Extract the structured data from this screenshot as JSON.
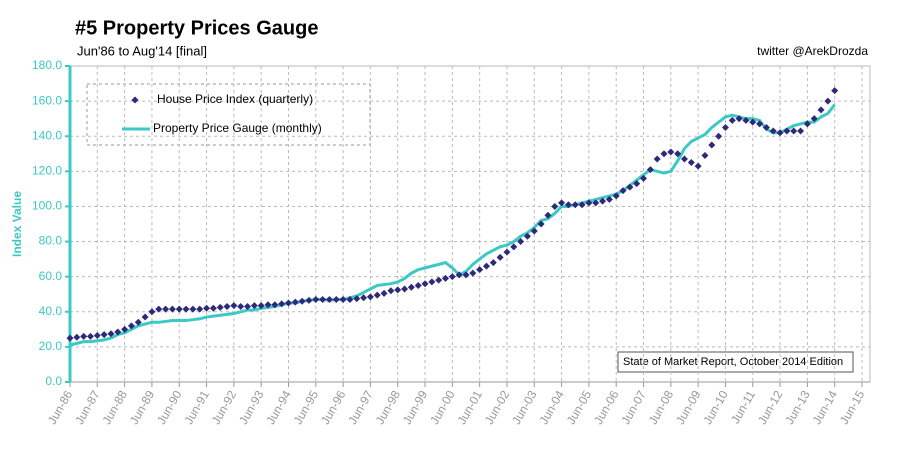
{
  "chart_data": {
    "type": "scatter-line",
    "title": "#5 Property Prices Gauge",
    "subtitle": "Jun'86 to Aug'14 [final]",
    "credit": "twitter @ArekDrozda",
    "ylabel": "Index Value",
    "note": "State of Market Report, October 2014 Edition",
    "x": [
      "Jun-86",
      "Sep-86",
      "Dec-86",
      "Mar-87",
      "Jun-87",
      "Sep-87",
      "Dec-87",
      "Mar-88",
      "Jun-88",
      "Sep-88",
      "Dec-88",
      "Mar-89",
      "Jun-89",
      "Sep-89",
      "Dec-89",
      "Mar-90",
      "Jun-90",
      "Sep-90",
      "Dec-90",
      "Mar-91",
      "Jun-91",
      "Sep-91",
      "Dec-91",
      "Mar-92",
      "Jun-92",
      "Sep-92",
      "Dec-92",
      "Mar-93",
      "Jun-93",
      "Sep-93",
      "Dec-93",
      "Mar-94",
      "Jun-94",
      "Sep-94",
      "Dec-94",
      "Mar-95",
      "Jun-95",
      "Sep-95",
      "Dec-95",
      "Mar-96",
      "Jun-96",
      "Sep-96",
      "Dec-96",
      "Mar-97",
      "Jun-97",
      "Sep-97",
      "Dec-97",
      "Mar-98",
      "Jun-98",
      "Sep-98",
      "Dec-98",
      "Mar-99",
      "Jun-99",
      "Sep-99",
      "Dec-99",
      "Mar-00",
      "Jun-00",
      "Sep-00",
      "Dec-00",
      "Mar-01",
      "Jun-01",
      "Sep-01",
      "Dec-01",
      "Mar-02",
      "Jun-02",
      "Sep-02",
      "Dec-02",
      "Mar-03",
      "Jun-03",
      "Sep-03",
      "Dec-03",
      "Mar-04",
      "Jun-04",
      "Sep-04",
      "Dec-04",
      "Mar-05",
      "Jun-05",
      "Sep-05",
      "Dec-05",
      "Mar-06",
      "Jun-06",
      "Sep-06",
      "Dec-06",
      "Mar-07",
      "Jun-07",
      "Sep-07",
      "Dec-07",
      "Mar-08",
      "Jun-08",
      "Sep-08",
      "Dec-08",
      "Mar-09",
      "Jun-09",
      "Sep-09",
      "Dec-09",
      "Mar-10",
      "Jun-10",
      "Sep-10",
      "Dec-10",
      "Mar-11",
      "Jun-11",
      "Sep-11",
      "Dec-11",
      "Mar-12",
      "Jun-12",
      "Sep-12",
      "Dec-12",
      "Mar-13",
      "Jun-13",
      "Sep-13",
      "Dec-13",
      "Mar-14",
      "Jun-14"
    ],
    "series": [
      {
        "name": "House Price Index (quarterly)",
        "color": "#2e2a7a",
        "style": "marker",
        "values": [
          25,
          25.5,
          26,
          26,
          26.5,
          27,
          27.5,
          28.5,
          30,
          32,
          34,
          37,
          40,
          41.5,
          41.5,
          41.5,
          41.5,
          41.5,
          41.5,
          41.5,
          42,
          42,
          42.5,
          43,
          43.5,
          43,
          43,
          43.5,
          43.5,
          44,
          44,
          44.5,
          45,
          45.5,
          46,
          46.5,
          47,
          47,
          47,
          47,
          47,
          47,
          47.5,
          48,
          48.5,
          49.5,
          50.5,
          52,
          52.5,
          53,
          54,
          55,
          56,
          57,
          58,
          59,
          60,
          61,
          61,
          62,
          64,
          66,
          68,
          71,
          74,
          77,
          80,
          83,
          86,
          90,
          95,
          100,
          102,
          101,
          101,
          101,
          102,
          102,
          103,
          104,
          106,
          109,
          111,
          113,
          116,
          121,
          127,
          130,
          131,
          130,
          127,
          125,
          123,
          129,
          135,
          140,
          145,
          149,
          150,
          149,
          148,
          147,
          145,
          143,
          142,
          143,
          143,
          143,
          147,
          150,
          155,
          160,
          166
        ]
      },
      {
        "name": "Property Price Gauge (monthly)",
        "color": "#3cc9c4",
        "style": "line",
        "values": [
          21,
          22,
          23,
          23,
          23.5,
          24,
          25,
          27,
          28,
          30,
          32,
          33,
          34,
          34,
          34.5,
          35,
          35,
          35,
          35.5,
          36,
          37,
          37.5,
          38,
          38.5,
          39,
          40,
          41,
          41,
          42,
          42.5,
          43,
          44,
          45,
          45,
          46,
          46.5,
          47,
          47,
          46.5,
          47,
          47,
          48,
          49,
          51,
          53,
          55,
          55.5,
          56,
          57,
          59,
          62,
          64,
          65,
          66,
          67,
          68,
          65,
          61,
          63,
          67,
          70,
          73,
          75,
          77,
          78,
          80,
          83,
          85,
          88,
          92,
          93,
          96,
          100,
          100,
          101,
          102,
          103,
          104,
          105,
          106,
          107,
          109,
          112,
          115,
          118,
          121,
          120,
          119,
          120,
          126,
          133,
          137,
          139,
          141,
          145,
          148,
          151,
          152,
          151,
          150,
          150,
          149,
          144,
          142,
          142,
          144,
          146,
          147,
          148,
          148,
          151,
          153,
          158
        ]
      }
    ],
    "xlim": [
      "Jun-86",
      "Jun-15"
    ],
    "xticks": [
      "Jun-86",
      "Jun-87",
      "Jun-88",
      "Jun-89",
      "Jun-90",
      "Jun-91",
      "Jun-92",
      "Jun-93",
      "Jun-94",
      "Jun-95",
      "Jun-96",
      "Jun-97",
      "Jun-98",
      "Jun-99",
      "Jun-00",
      "Jun-01",
      "Jun-02",
      "Jun-03",
      "Jun-04",
      "Jun-05",
      "Jun-06",
      "Jun-07",
      "Jun-08",
      "Jun-09",
      "Jun-10",
      "Jun-11",
      "Jun-12",
      "Jun-13",
      "Jun-14",
      "Jun-15"
    ],
    "ylim": [
      0,
      180
    ],
    "yticks": [
      {
        "value": 0,
        "label": "0.0"
      },
      {
        "value": 20,
        "label": "20.0"
      },
      {
        "value": 40,
        "label": "40.0"
      },
      {
        "value": 60,
        "label": "60.0"
      },
      {
        "value": 80,
        "label": "80.0"
      },
      {
        "value": 100,
        "label": "100.0"
      },
      {
        "value": 120,
        "label": "120.0"
      },
      {
        "value": 140,
        "label": "140.0"
      },
      {
        "value": 160,
        "label": "160.0"
      },
      {
        "value": 180,
        "label": "180.0"
      }
    ],
    "grid": true
  }
}
